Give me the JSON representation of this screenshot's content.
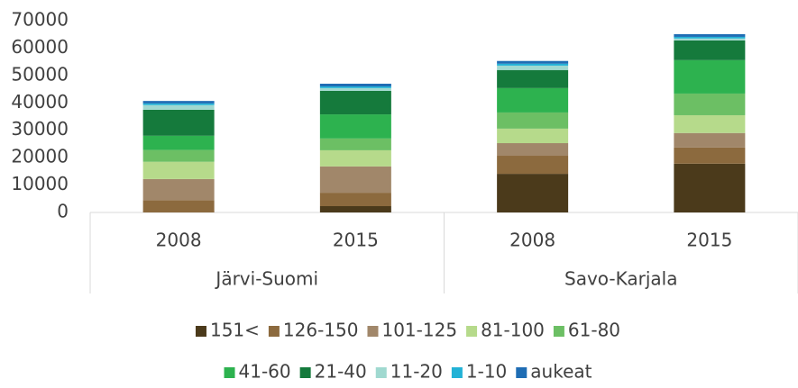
{
  "chart_data": {
    "type": "stacked_bar",
    "categories": [
      "2008",
      "2015",
      "2008",
      "2015"
    ],
    "category_groups": [
      "Järvi-Suomi",
      "Savo-Karjala"
    ],
    "ylim": [
      0,
      70000
    ],
    "yticks": [
      0,
      10000,
      20000,
      30000,
      40000,
      50000,
      60000,
      70000
    ],
    "grid": false,
    "legend": "bottom",
    "series": [
      {
        "name": "151<",
        "color": "#4b3a1b",
        "values": [
          0,
          2300,
          14100,
          17800
        ]
      },
      {
        "name": "126-150",
        "color": "#8c6a3e",
        "values": [
          4500,
          4900,
          6600,
          5900
        ]
      },
      {
        "name": "101-125",
        "color": "#a1876a",
        "values": [
          7700,
          9600,
          4600,
          5300
        ]
      },
      {
        "name": "81-100",
        "color": "#b6da8b",
        "values": [
          6300,
          5900,
          5300,
          6500
        ]
      },
      {
        "name": "61-80",
        "color": "#6cbf64",
        "values": [
          4300,
          4300,
          5900,
          7900
        ]
      },
      {
        "name": "41-60",
        "color": "#2db24f",
        "values": [
          5200,
          8800,
          8900,
          12200
        ]
      },
      {
        "name": "21-40",
        "color": "#157a3c",
        "values": [
          9500,
          8600,
          6600,
          7200
        ]
      },
      {
        "name": "11-20",
        "color": "#a0d9d0",
        "values": [
          1700,
          1000,
          1600,
          700
        ]
      },
      {
        "name": "1-10",
        "color": "#22b2d6",
        "values": [
          600,
          600,
          700,
          600
        ]
      },
      {
        "name": "aukeat",
        "color": "#1f6db4",
        "values": [
          900,
          1000,
          1000,
          1000
        ]
      }
    ]
  }
}
